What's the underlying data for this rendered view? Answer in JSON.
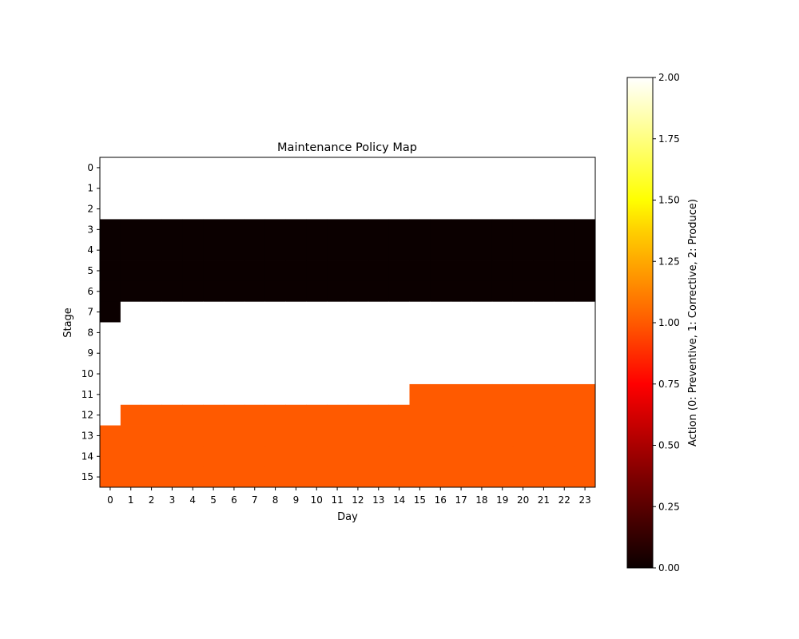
{
  "chart_data": {
    "type": "heatmap",
    "title": "Maintenance Policy Map",
    "xlabel": "Day",
    "ylabel": "Stage",
    "colorbar_label": "Action (0: Preventive, 1: Corrective, 2: Produce)",
    "colormap": "hot",
    "vmin": 0,
    "vmax": 2,
    "colorbar_ticks": [
      "0.00",
      "0.25",
      "0.50",
      "0.75",
      "1.00",
      "1.25",
      "1.50",
      "1.75",
      "2.00"
    ],
    "colorbar_tick_values": [
      0,
      0.25,
      0.5,
      0.75,
      1.0,
      1.25,
      1.5,
      1.75,
      2.0
    ],
    "x": [
      0,
      1,
      2,
      3,
      4,
      5,
      6,
      7,
      8,
      9,
      10,
      11,
      12,
      13,
      14,
      15,
      16,
      17,
      18,
      19,
      20,
      21,
      22,
      23
    ],
    "y": [
      0,
      1,
      2,
      3,
      4,
      5,
      6,
      7,
      8,
      9,
      10,
      11,
      12,
      13,
      14,
      15
    ],
    "values": [
      [
        2,
        2,
        2,
        2,
        2,
        2,
        2,
        2,
        2,
        2,
        2,
        2,
        2,
        2,
        2,
        2,
        2,
        2,
        2,
        2,
        2,
        2,
        2,
        2
      ],
      [
        2,
        2,
        2,
        2,
        2,
        2,
        2,
        2,
        2,
        2,
        2,
        2,
        2,
        2,
        2,
        2,
        2,
        2,
        2,
        2,
        2,
        2,
        2,
        2
      ],
      [
        2,
        2,
        2,
        2,
        2,
        2,
        2,
        2,
        2,
        2,
        2,
        2,
        2,
        2,
        2,
        2,
        2,
        2,
        2,
        2,
        2,
        2,
        2,
        2
      ],
      [
        0,
        0,
        0,
        0,
        0,
        0,
        0,
        0,
        0,
        0,
        0,
        0,
        0,
        0,
        0,
        0,
        0,
        0,
        0,
        0,
        0,
        0,
        0,
        0
      ],
      [
        0,
        0,
        0,
        0,
        0,
        0,
        0,
        0,
        0,
        0,
        0,
        0,
        0,
        0,
        0,
        0,
        0,
        0,
        0,
        0,
        0,
        0,
        0,
        0
      ],
      [
        0,
        0,
        0,
        0,
        0,
        0,
        0,
        0,
        0,
        0,
        0,
        0,
        0,
        0,
        0,
        0,
        0,
        0,
        0,
        0,
        0,
        0,
        0,
        0
      ],
      [
        0,
        0,
        0,
        0,
        0,
        0,
        0,
        0,
        0,
        0,
        0,
        0,
        0,
        0,
        0,
        0,
        0,
        0,
        0,
        0,
        0,
        0,
        0,
        0
      ],
      [
        0,
        2,
        2,
        2,
        2,
        2,
        2,
        2,
        2,
        2,
        2,
        2,
        2,
        2,
        2,
        2,
        2,
        2,
        2,
        2,
        2,
        2,
        2,
        2
      ],
      [
        2,
        2,
        2,
        2,
        2,
        2,
        2,
        2,
        2,
        2,
        2,
        2,
        2,
        2,
        2,
        2,
        2,
        2,
        2,
        2,
        2,
        2,
        2,
        2
      ],
      [
        2,
        2,
        2,
        2,
        2,
        2,
        2,
        2,
        2,
        2,
        2,
        2,
        2,
        2,
        2,
        2,
        2,
        2,
        2,
        2,
        2,
        2,
        2,
        2
      ],
      [
        2,
        2,
        2,
        2,
        2,
        2,
        2,
        2,
        2,
        2,
        2,
        2,
        2,
        2,
        2,
        2,
        2,
        2,
        2,
        2,
        2,
        2,
        2,
        2
      ],
      [
        2,
        2,
        2,
        2,
        2,
        2,
        2,
        2,
        2,
        2,
        2,
        2,
        2,
        2,
        2,
        1,
        1,
        1,
        1,
        1,
        1,
        1,
        1,
        1
      ],
      [
        2,
        1,
        1,
        1,
        1,
        1,
        1,
        1,
        1,
        1,
        1,
        1,
        1,
        1,
        1,
        1,
        1,
        1,
        1,
        1,
        1,
        1,
        1,
        1
      ],
      [
        1,
        1,
        1,
        1,
        1,
        1,
        1,
        1,
        1,
        1,
        1,
        1,
        1,
        1,
        1,
        1,
        1,
        1,
        1,
        1,
        1,
        1,
        1,
        1
      ],
      [
        1,
        1,
        1,
        1,
        1,
        1,
        1,
        1,
        1,
        1,
        1,
        1,
        1,
        1,
        1,
        1,
        1,
        1,
        1,
        1,
        1,
        1,
        1,
        1
      ],
      [
        1,
        1,
        1,
        1,
        1,
        1,
        1,
        1,
        1,
        1,
        1,
        1,
        1,
        1,
        1,
        1,
        1,
        1,
        1,
        1,
        1,
        1,
        1,
        1
      ]
    ]
  }
}
